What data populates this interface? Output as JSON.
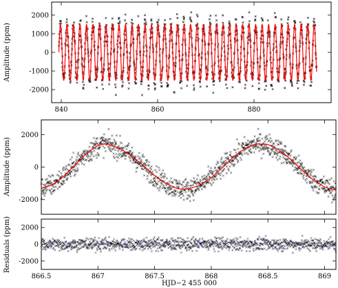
{
  "chart_data": [
    {
      "type": "line",
      "panel": "top",
      "ylabel": "Amplitude (ppm)",
      "xlabel": "",
      "xlim": [
        838,
        896
      ],
      "ylim": [
        -2700,
        2700
      ],
      "x_ticks": [
        840,
        860,
        880
      ],
      "y_ticks": [
        -2000,
        -1000,
        0,
        1000,
        2000
      ],
      "colors": {
        "observations": "#000000",
        "model": "#ff0000"
      },
      "series": [
        {
          "x_range": [
            839.5,
            893.0
          ],
          "period_days": 1.35,
          "amplitude": 1500,
          "scatter_ppm": 350
        }
      ]
    },
    {
      "type": "scatter",
      "panel": "middle",
      "ylabel": "Amplitude (ppm)",
      "xlabel": "",
      "xlim": [
        866.5,
        869.1
      ],
      "ylim": [
        -2900,
        2900
      ],
      "x_ticks": [
        866.5,
        867,
        867.5,
        868,
        868.5,
        869
      ],
      "y_ticks": [
        -2000,
        0,
        2000
      ],
      "colors": {
        "observations": "#000000",
        "model": "#ff0000"
      },
      "series": [
        {
          "x": [
            866.5,
            866.6,
            866.7,
            866.8,
            866.9,
            867.0,
            867.05,
            867.1,
            867.2,
            867.3,
            867.4,
            867.5,
            867.6,
            867.7,
            867.75,
            867.8,
            867.9,
            868.0,
            868.1,
            868.2,
            868.3,
            868.4,
            868.5,
            868.6,
            868.7,
            868.8,
            868.9,
            869.0,
            869.1
          ],
          "y": [
            -1300,
            -1100,
            -560,
            150,
            850,
            1330,
            1420,
            1380,
            1120,
            660,
            90,
            -520,
            -1020,
            -1320,
            -1370,
            -1330,
            -1120,
            -650,
            -20,
            640,
            1160,
            1430,
            1390,
            1050,
            480,
            -190,
            -800,
            -1230,
            -1420
          ]
        }
      ]
    },
    {
      "type": "scatter",
      "panel": "bottom",
      "ylabel": "Residuals (ppm)",
      "xlabel": "HJD−2 455 000",
      "xlim": [
        866.5,
        869.1
      ],
      "ylim": [
        -3000,
        3000
      ],
      "x_ticks": [
        866.5,
        867,
        867.5,
        868,
        868.5,
        869
      ],
      "x_tick_labels": [
        "866.5",
        "867",
        "867.5",
        "868",
        "868.5",
        "869"
      ],
      "y_ticks": [
        -2000,
        0,
        2000
      ],
      "colors": {
        "observations": "#000000",
        "residual_tint": "#1a1a6e"
      },
      "series": [
        {
          "x_range": [
            866.5,
            869.1
          ],
          "mean": 0,
          "scatter_ppm": 380
        }
      ]
    }
  ]
}
